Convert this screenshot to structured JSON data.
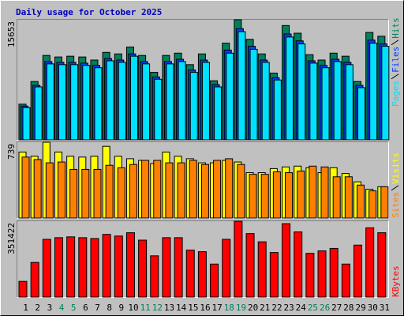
{
  "title": "Daily usage for October 2025",
  "categories": [
    "1",
    "2",
    "3",
    "4",
    "5",
    "6",
    "7",
    "8",
    "9",
    "10",
    "11",
    "12",
    "13",
    "14",
    "15",
    "16",
    "17",
    "18",
    "19",
    "20",
    "21",
    "22",
    "23",
    "24",
    "25",
    "26",
    "27",
    "28",
    "29",
    "30",
    "31"
  ],
  "category_colors": [
    "#000000",
    "#000000",
    "#000000",
    "#00805c",
    "#00805c",
    "#000000",
    "#000000",
    "#000000",
    "#000000",
    "#000000",
    "#00805c",
    "#00805c",
    "#000000",
    "#000000",
    "#000000",
    "#000000",
    "#000000",
    "#00805c",
    "#00805c",
    "#000000",
    "#000000",
    "#000000",
    "#000000",
    "#000000",
    "#00805c",
    "#00805c",
    "#000000",
    "#000000",
    "#000000",
    "#000000",
    "#000000"
  ],
  "chart_data": [
    {
      "type": "bar",
      "ylim": [
        0,
        15653
      ],
      "yticks": [
        15653
      ],
      "series": [
        {
          "name": "Hits",
          "color": "#00805c",
          "values": [
            4650,
            7600,
            11000,
            10800,
            10900,
            10800,
            10400,
            11400,
            11200,
            12100,
            11000,
            8800,
            11000,
            11300,
            9800,
            11200,
            7700,
            12600,
            15653,
            13100,
            11200,
            8700,
            14900,
            13900,
            11100,
            10400,
            11300,
            10900,
            7600,
            14000,
            13500
          ]
        },
        {
          "name": "Files",
          "color": "#0040ff",
          "values": [
            4400,
            7100,
            10200,
            10100,
            10100,
            10000,
            9700,
            10600,
            10400,
            11200,
            10200,
            8200,
            10200,
            10500,
            9100,
            10400,
            7200,
            11700,
            14500,
            12200,
            10400,
            8100,
            13800,
            12900,
            10300,
            9700,
            10500,
            10100,
            7100,
            13000,
            12500
          ]
        },
        {
          "name": "Pages",
          "color": "#00e0ff",
          "values": [
            4200,
            6900,
            9900,
            9800,
            9800,
            9700,
            9400,
            10300,
            10100,
            10900,
            9900,
            7900,
            9900,
            10200,
            8800,
            10100,
            6900,
            11300,
            14100,
            11800,
            10100,
            7800,
            13400,
            12500,
            10000,
            9400,
            10200,
            9800,
            6800,
            12600,
            12200
          ]
        }
      ]
    },
    {
      "type": "bar",
      "ylim": [
        0,
        739
      ],
      "yticks": [
        739
      ],
      "series": [
        {
          "name": "Visits",
          "color": "#ffff00",
          "values": [
            643,
            602,
            739,
            643,
            602,
            594,
            602,
            699,
            602,
            578,
            562,
            530,
            643,
            602,
            578,
            538,
            538,
            562,
            546,
            442,
            442,
            482,
            498,
            506,
            490,
            442,
            490,
            434,
            353,
            281,
            305
          ]
        },
        {
          "name": "Sites",
          "color": "#ff8000",
          "values": [
            594,
            570,
            538,
            546,
            474,
            474,
            474,
            514,
            490,
            522,
            562,
            562,
            538,
            538,
            562,
            522,
            562,
            578,
            522,
            426,
            426,
            450,
            442,
            458,
            506,
            498,
            402,
            402,
            321,
            265,
            305
          ]
        }
      ]
    },
    {
      "type": "bar",
      "ylim": [
        0,
        351422
      ],
      "yticks": [
        351422
      ],
      "series": [
        {
          "name": "KBytes",
          "color": "#ff0000",
          "values": [
            72600,
            160400,
            267400,
            275000,
            278900,
            275000,
            271200,
            290300,
            282700,
            298000,
            263600,
            191000,
            275000,
            275000,
            217700,
            210100,
            152800,
            267400,
            351422,
            294100,
            255900,
            206300,
            340000,
            301800,
            202500,
            213900,
            225400,
            152800,
            240700,
            320900,
            298000
          ]
        }
      ]
    }
  ]
}
